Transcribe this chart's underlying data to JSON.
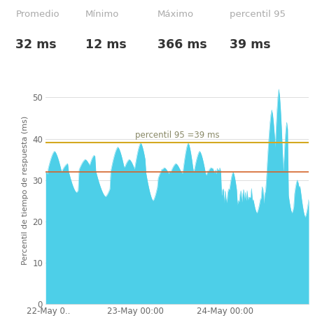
{
  "title_stats": [
    {
      "label": "Promedio",
      "value": "32 ms"
    },
    {
      "label": "Mínimo",
      "value": "12 ms"
    },
    {
      "label": "Máximo",
      "value": "366 ms"
    },
    {
      "label": "percentil 95",
      "value": "39 ms"
    }
  ],
  "ylabel": "Percentil de tiempo de respuesta (ms)",
  "ylim": [
    0,
    55
  ],
  "yticks": [
    0,
    10,
    20,
    30,
    40,
    50
  ],
  "xtick_labels": [
    "22-May 0..",
    "23-May 00:00",
    "24-May 00:00"
  ],
  "avg_line": 32,
  "p95_line": 39,
  "avg_line_color": "#d4652a",
  "p95_line_color": "#d4a820",
  "area_color": "#4dcfe8",
  "area_alpha": 1.0,
  "p95_label": "percentil 95 =39 ms",
  "p95_label_color": "#888866",
  "background_color": "#ffffff",
  "plot_bg_color": "#ffffff",
  "grid_color": "#dddddd",
  "stat_label_color": "#aaaaaa",
  "stat_value_color": "#333333",
  "stats_label_fontsize": 9.5,
  "stats_value_fontsize": 12.5
}
